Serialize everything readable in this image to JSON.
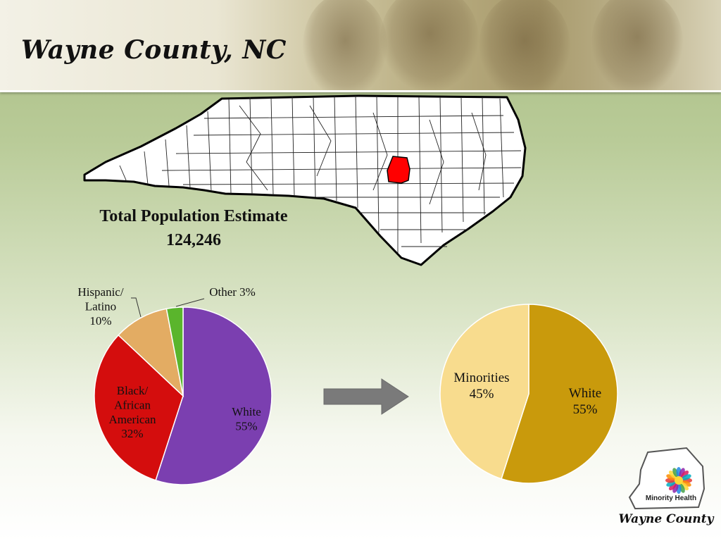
{
  "slide": {
    "title": "Wayne County, NC",
    "population_label": "Total Population Estimate",
    "population_value": "124,246"
  },
  "map": {
    "highlight_color": "#ff0000",
    "fill_color": "#ffffff",
    "border_color": "#000000"
  },
  "logo": {
    "inner_text": "Minority Health",
    "caption": "Wayne County"
  },
  "chart_data": [
    {
      "type": "pie",
      "title": "",
      "slices": [
        {
          "name": "White",
          "value": 55,
          "label_lines": [
            "White",
            "55%"
          ],
          "color": "#7b3fb0"
        },
        {
          "name": "Black/ African American",
          "value": 32,
          "label_lines": [
            "Black/",
            "African",
            "American",
            "32%"
          ],
          "color": "#d40d0d"
        },
        {
          "name": "Hispanic/ Latino",
          "value": 10,
          "label_lines": [
            "Hispanic/",
            "Latino",
            "10%"
          ],
          "color": "#e3ac63"
        },
        {
          "name": "Other",
          "value": 3,
          "label_lines": [
            "Other 3%"
          ],
          "color": "#5ab52c"
        }
      ]
    },
    {
      "type": "pie",
      "title": "",
      "slices": [
        {
          "name": "White",
          "value": 55,
          "label_lines": [
            "White",
            "55%"
          ],
          "color": "#c99a0c"
        },
        {
          "name": "Minorities",
          "value": 45,
          "label_lines": [
            "Minorities",
            "45%"
          ],
          "color": "#f8dc8e"
        }
      ]
    }
  ]
}
